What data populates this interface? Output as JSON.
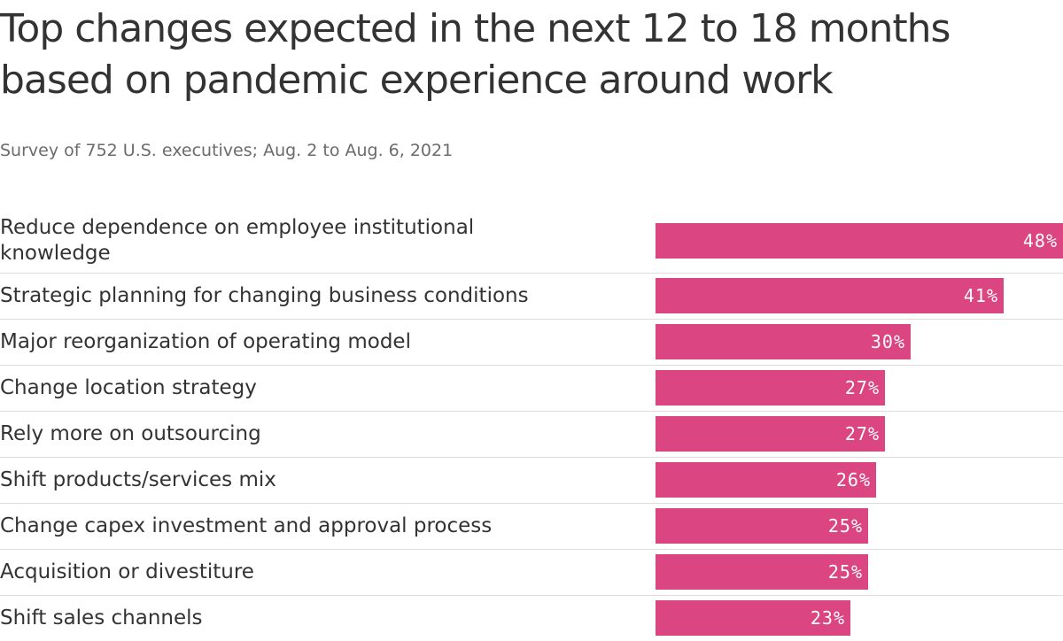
{
  "header": {
    "title": "Top changes expected in the next 12 to 18 months based on pandemic experience around work",
    "subtitle": "Survey of 752 U.S. executives; Aug. 2 to Aug. 6, 2021"
  },
  "colors": {
    "bar": "#db4581",
    "divider": "#dddddd",
    "text": "#333333",
    "subtitle": "#6b6b6b"
  },
  "chart_data": {
    "type": "bar",
    "orientation": "horizontal",
    "title": "Top changes expected in the next 12 to 18 months based on pandemic experience around work",
    "subtitle": "Survey of 752 U.S. executives; Aug. 2 to Aug. 6, 2021",
    "xlabel": "",
    "ylabel": "",
    "xlim": [
      0,
      48
    ],
    "grid": false,
    "legend": "none",
    "categories": [
      "Reduce dependence on employee institutional knowledge",
      "Strategic planning for changing business conditions",
      "Major reorganization of operating model",
      "Change location strategy",
      "Rely more on outsourcing",
      "Shift products/services mix",
      "Change capex investment and approval process",
      "Acquisition or divestiture",
      "Shift sales channels"
    ],
    "values": [
      48,
      41,
      30,
      27,
      27,
      26,
      25,
      25,
      23
    ],
    "value_labels": [
      "48%",
      "41%",
      "30%",
      "27%",
      "27%",
      "26%",
      "25%",
      "25%",
      "23%"
    ]
  }
}
